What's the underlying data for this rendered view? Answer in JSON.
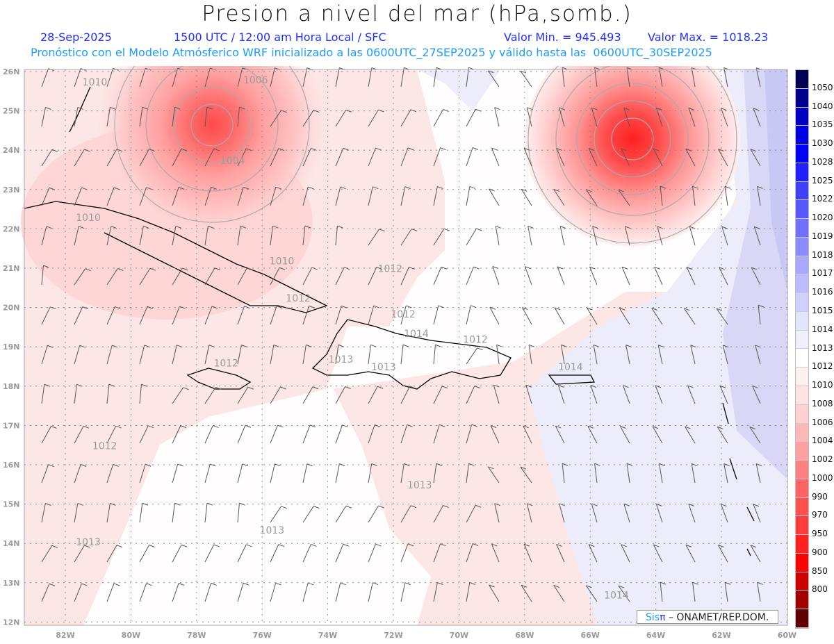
{
  "header": {
    "title": "Presion a nivel del mar (hPa,somb.)",
    "date": "28-Sep-2025",
    "time": "1500 UTC / 12:00 am Hora Local / SFC",
    "min_label": "Valor Min. = 945.493",
    "max_label": "Valor Max. = 1018.23",
    "forecast_info": "Pronóstico con el Modelo Atmósferico WRF inicializado a las 0600UTC_27SEP2025 y válido hasta las  0600UTC_30SEP2025"
  },
  "map": {
    "lat_labels": [
      "26N",
      "25N",
      "24N",
      "23N",
      "22N",
      "21N",
      "20N",
      "19N",
      "18N",
      "17N",
      "16N",
      "15N",
      "14N",
      "13N",
      "12N"
    ],
    "lon_labels": [
      "82W",
      "80W",
      "78W",
      "76W",
      "74W",
      "72W",
      "70W",
      "68W",
      "66W",
      "64W",
      "62W",
      "60W"
    ],
    "contour_labels": [
      {
        "text": "1010",
        "lon": -81.1,
        "lat": 25.65
      },
      {
        "text": "1006",
        "lon": -76.2,
        "lat": 25.7
      },
      {
        "text": "1004",
        "lon": -76.9,
        "lat": 23.65
      },
      {
        "text": "1010",
        "lon": -81.3,
        "lat": 22.2
      },
      {
        "text": "1010",
        "lon": -75.4,
        "lat": 21.1
      },
      {
        "text": "1012",
        "lon": -72.1,
        "lat": 20.9
      },
      {
        "text": "1012",
        "lon": -74.9,
        "lat": 20.15
      },
      {
        "text": "1012",
        "lon": -71.7,
        "lat": 19.75
      },
      {
        "text": "1014",
        "lon": -71.3,
        "lat": 19.25
      },
      {
        "text": "1012",
        "lon": -69.5,
        "lat": 19.1
      },
      {
        "text": "1013",
        "lon": -73.6,
        "lat": 18.6
      },
      {
        "text": "1013",
        "lon": -72.3,
        "lat": 18.4
      },
      {
        "text": "1012",
        "lon": -77.1,
        "lat": 18.5
      },
      {
        "text": "1014",
        "lon": -66.6,
        "lat": 18.4
      },
      {
        "text": "1012",
        "lon": -80.8,
        "lat": 16.4
      },
      {
        "text": "1013",
        "lon": -71.2,
        "lat": 15.4
      },
      {
        "text": "1013",
        "lon": -75.7,
        "lat": 14.25
      },
      {
        "text": "1013",
        "lon": -81.3,
        "lat": 13.95
      },
      {
        "text": "1014",
        "lon": -65.2,
        "lat": 12.6
      }
    ]
  },
  "colorbar": {
    "labels": [
      "1050",
      "1040",
      "1035",
      "1030",
      "1028",
      "1025",
      "1022",
      "1020",
      "1019",
      "1018",
      "1017",
      "1016",
      "1015",
      "1014",
      "1013",
      "1012",
      "1010",
      "1008",
      "1006",
      "1004",
      "1002",
      "1000",
      "990",
      "970",
      "950",
      "900",
      "850",
      "800"
    ],
    "colors": [
      "#000050",
      "#000090",
      "#0000c0",
      "#0000e6",
      "#0000ff",
      "#2020ff",
      "#4040ff",
      "#5858ff",
      "#7070ff",
      "#8c8cff",
      "#a8a8ff",
      "#bcbcff",
      "#d0d0ff",
      "#e4e4fa",
      "#f0f0fc",
      "#ffffff",
      "#fff0f0",
      "#ffe2e2",
      "#ffd0d0",
      "#ffb8b8",
      "#ffa0a0",
      "#ff8080",
      "#ff6464",
      "#ff5050",
      "#ff3c3c",
      "#ff2020",
      "#ff0000",
      "#cc0000",
      "#a00000",
      "#600000"
    ]
  },
  "footer": {
    "logo_sis": "Sis",
    "logo_pi": "π",
    "credit": " –  ONAMET/REP.DOM."
  }
}
